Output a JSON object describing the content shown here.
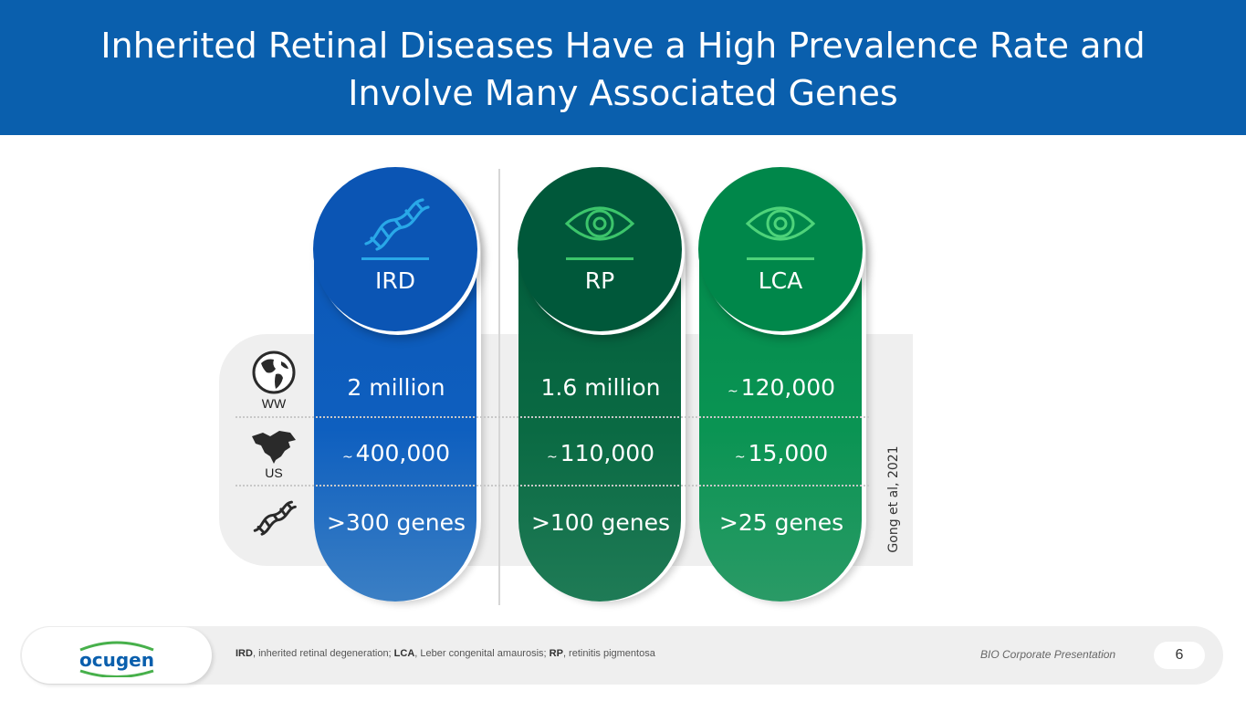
{
  "header": {
    "title": "Inherited Retinal Diseases Have a High Prevalence Rate and Involve Many Associated Genes"
  },
  "colors": {
    "brand_blue": "#0a5fad",
    "ird_blue": "#0b55b4",
    "rp_green": "#00583a",
    "lca_green": "#00874a"
  },
  "row_labels": {
    "worldwide": "WW",
    "us": "US"
  },
  "columns": [
    {
      "label": "IRD",
      "icon": "dna-icon",
      "ww": "2 million",
      "us_prefix": "~",
      "us": "400,000",
      "genes": ">300 genes"
    },
    {
      "label": "RP",
      "icon": "eye-icon",
      "ww": "1.6 million",
      "us_prefix": "~",
      "us": "110,000",
      "genes": ">100 genes"
    },
    {
      "label": "LCA",
      "icon": "eye-icon",
      "ww_prefix": "~",
      "ww": "120,000",
      "us_prefix": "~",
      "us": "15,000",
      "genes": ">25 genes"
    }
  ],
  "citation": "Gong et al, 2021",
  "footer": {
    "logo_text": "ocugen",
    "abbr": [
      {
        "term": "IRD",
        "def": ", inherited retinal degeneration; "
      },
      {
        "term": "LCA",
        "def": ", Leber congenital amaurosis; "
      },
      {
        "term": "RP",
        "def": ", retinitis pigmentosa"
      }
    ],
    "presentation": "BIO Corporate Presentation",
    "page": "6"
  }
}
